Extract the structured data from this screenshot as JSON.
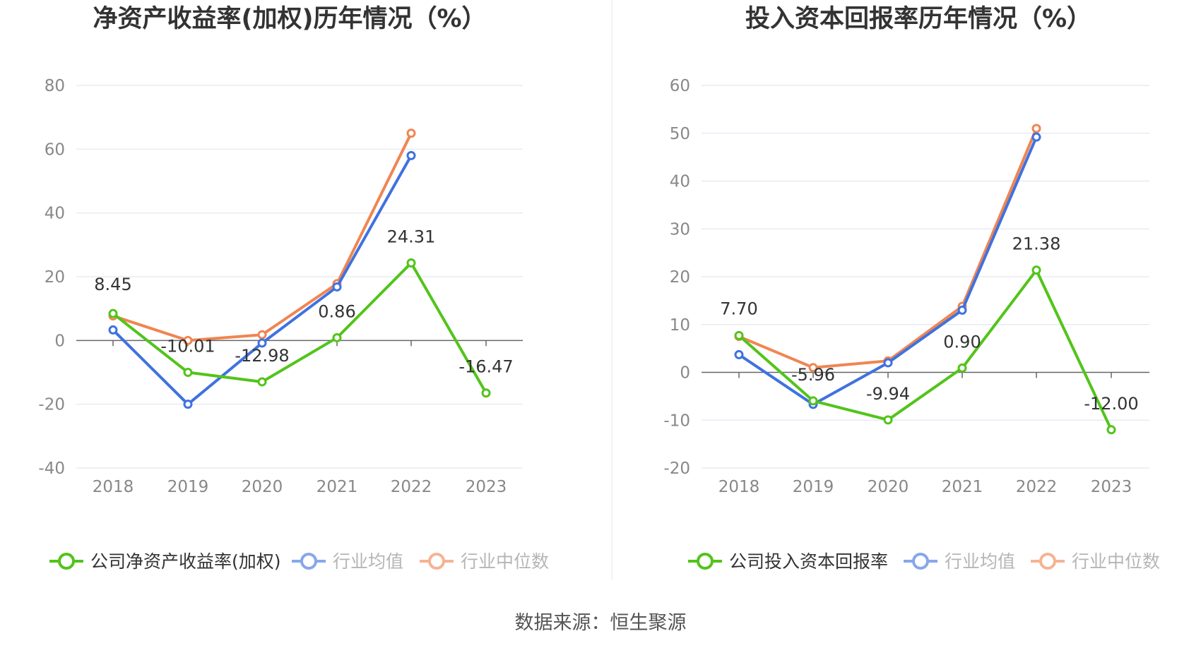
{
  "colors": {
    "company": "#52c41a",
    "average": "#3f72e0",
    "median": "#f08552",
    "grid": "#e3e6f0",
    "axis": "#666666",
    "divider": "#eeeeee"
  },
  "source": "数据来源：恒生聚源",
  "chart_data": [
    {
      "type": "line",
      "title": "净资产收益率(加权)历年情况（%）",
      "categories": [
        "2018",
        "2019",
        "2020",
        "2021",
        "2022",
        "2023"
      ],
      "ylim": [
        -40,
        80
      ],
      "ystep": 20,
      "y_ticks": [
        "80",
        "60",
        "40",
        "20",
        "0",
        "-20",
        "-40"
      ],
      "grid": true,
      "legend_position": "bottom",
      "series": [
        {
          "name": "公司净资产收益率(加权)",
          "key": "company",
          "values": [
            8.45,
            -10.01,
            -12.98,
            0.86,
            24.31,
            -16.47
          ],
          "labels": [
            "8.45",
            "-10.01",
            "-12.98",
            "0.86",
            "24.31",
            "-16.47"
          ]
        },
        {
          "name": "行业均值",
          "key": "average",
          "values": [
            3.3,
            -20.0,
            -0.8,
            16.8,
            58.0,
            null
          ]
        },
        {
          "name": "行业中位数",
          "key": "median",
          "values": [
            7.7,
            0.0,
            1.8,
            17.8,
            65.0,
            null
          ]
        }
      ]
    },
    {
      "type": "line",
      "title": "投入资本回报率历年情况（%）",
      "categories": [
        "2018",
        "2019",
        "2020",
        "2021",
        "2022",
        "2023"
      ],
      "ylim": [
        -20,
        60
      ],
      "ystep": 10,
      "y_ticks": [
        "60",
        "50",
        "40",
        "30",
        "20",
        "10",
        "0",
        "-10",
        "-20"
      ],
      "grid": true,
      "legend_position": "bottom",
      "series": [
        {
          "name": "公司投入资本回报率",
          "key": "company",
          "values": [
            7.7,
            -5.96,
            -9.94,
            0.9,
            21.38,
            -12.0
          ],
          "labels": [
            "7.70",
            "-5.96",
            "-9.94",
            "0.90",
            "21.38",
            "-12.00"
          ]
        },
        {
          "name": "行业均值",
          "key": "average",
          "values": [
            3.7,
            -6.7,
            2.0,
            13.0,
            49.2,
            null
          ]
        },
        {
          "name": "行业中位数",
          "key": "median",
          "values": [
            7.5,
            1.0,
            2.4,
            13.8,
            51.0,
            null
          ]
        }
      ]
    }
  ]
}
